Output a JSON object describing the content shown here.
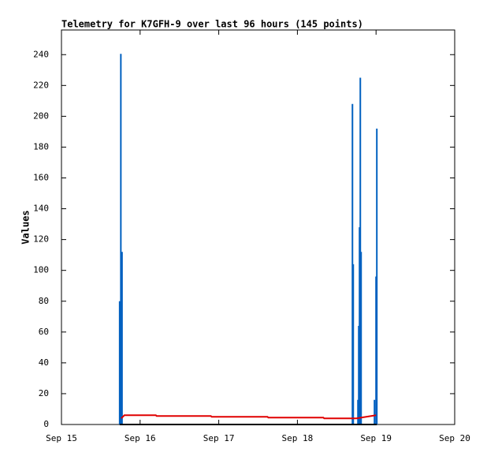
{
  "chart_data": {
    "type": "line",
    "title": "Telemetry for K7GFH-9 over last 96 hours (145 points)",
    "y_label": "Values",
    "xlim": [
      15,
      20
    ],
    "xticks": [
      {
        "value": 15,
        "label": "Sep 15"
      },
      {
        "value": 16,
        "label": "Sep 16"
      },
      {
        "value": 17,
        "label": "Sep 17"
      },
      {
        "value": 18,
        "label": "Sep 18"
      },
      {
        "value": 19,
        "label": "Sep 19"
      },
      {
        "value": 20,
        "label": "Sep 20"
      }
    ],
    "ylim": [
      0,
      256
    ],
    "yticks": [
      0,
      20,
      40,
      60,
      80,
      100,
      120,
      140,
      160,
      180,
      200,
      220,
      240
    ],
    "series": [
      {
        "style": "impulses",
        "color": "#0060c0",
        "x": [
          15.74,
          15.755,
          15.77,
          18.7,
          18.71,
          18.77,
          18.78,
          18.79,
          18.8,
          18.81,
          18.98,
          19.0,
          19.01
        ],
        "values": [
          80,
          240.5,
          112,
          208,
          104,
          16,
          64,
          128,
          225,
          112,
          16,
          96,
          192
        ]
      },
      {
        "style": "lines",
        "color": "#e00000",
        "x": [
          15.76,
          15.8,
          16.2,
          16.21,
          16.9,
          16.91,
          17.62,
          17.63,
          18.33,
          18.34,
          18.75,
          19.0
        ],
        "values": [
          4,
          6,
          6,
          5.5,
          5.5,
          5,
          5,
          4.5,
          4.5,
          4,
          4,
          6
        ]
      },
      {
        "style": "lines",
        "color": "#000000",
        "x": [
          15.74,
          19.01
        ],
        "values": [
          0,
          0
        ]
      }
    ]
  }
}
